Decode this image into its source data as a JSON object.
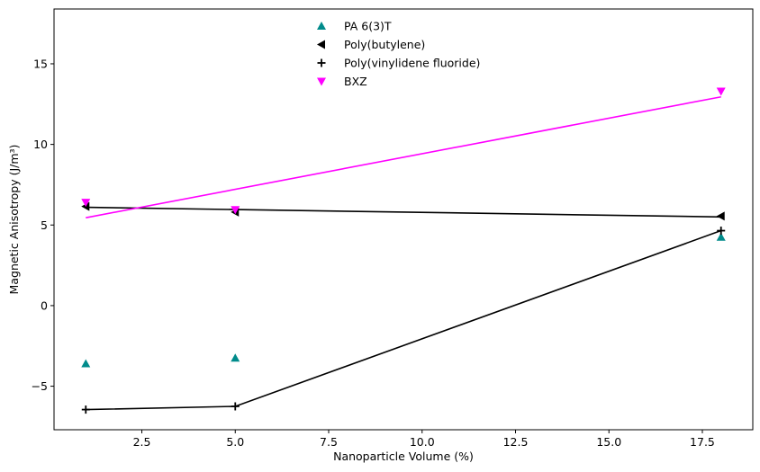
{
  "chart_data": {
    "type": "scatter",
    "xlabel": "Nanoparticle Volume (%)",
    "ylabel": "Magnetic Anisotropy (J/m³)",
    "xlim": [
      0.15,
      18.85
    ],
    "ylim": [
      -7.7,
      18.4
    ],
    "xticks": [
      2.5,
      5.0,
      7.5,
      10.0,
      12.5,
      15.0,
      17.5
    ],
    "xtick_labels": [
      "2.5",
      "5.0",
      "7.5",
      "10.0",
      "12.5",
      "15.0",
      "17.5"
    ],
    "yticks": [
      -5,
      0,
      5,
      10,
      15
    ],
    "ytick_labels": [
      "−5",
      "0",
      "5",
      "10",
      "15"
    ],
    "grid": false,
    "legend_position": "top-center",
    "series": [
      {
        "name": "PA 6(3)T",
        "marker": "triangle-up",
        "color": "#008b8b",
        "x": [
          1,
          5,
          18
        ],
        "y": [
          -3.6,
          -3.25,
          4.25
        ],
        "line": null
      },
      {
        "name": "Poly(butylene)",
        "marker": "triangle-left",
        "color": "#000000",
        "x": [
          1,
          5,
          18
        ],
        "y": [
          6.15,
          5.8,
          5.55
        ],
        "line": {
          "x": [
            1,
            18
          ],
          "y": [
            6.1,
            5.5
          ],
          "color": "#000000"
        }
      },
      {
        "name": "Poly(vinylidene fluoride)",
        "marker": "plus",
        "color": "#000000",
        "x": [
          1,
          5,
          18
        ],
        "y": [
          -6.45,
          -6.25,
          4.65
        ],
        "line": {
          "x": [
            1,
            5,
            18
          ],
          "y": [
            -6.45,
            -6.25,
            4.65
          ],
          "color": "#000000"
        }
      },
      {
        "name": "BXZ",
        "marker": "triangle-down",
        "color": "#ff00ff",
        "x": [
          1,
          5,
          18
        ],
        "y": [
          6.4,
          5.95,
          13.3
        ],
        "line": {
          "x": [
            1,
            18
          ],
          "y": [
            5.45,
            12.95
          ],
          "color": "#ff00ff"
        }
      }
    ]
  }
}
